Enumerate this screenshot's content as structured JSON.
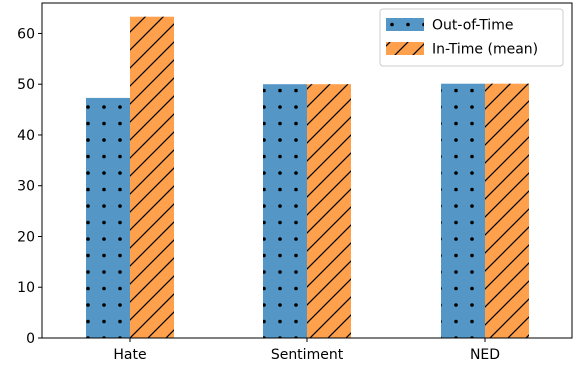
{
  "chart_data": {
    "type": "bar",
    "categories": [
      "Hate",
      "Sentiment",
      "NED"
    ],
    "series": [
      {
        "name": "Out-of-Time",
        "values": [
          47.3,
          50.0,
          50.1
        ],
        "color": "#5496c6",
        "pattern": "dots"
      },
      {
        "name": "In-Time (mean)",
        "values": [
          63.3,
          50.0,
          50.1
        ],
        "color": "#fea04c",
        "pattern": "diagonal-hatch"
      }
    ],
    "ylim": [
      0,
      66
    ],
    "yticks": [
      0,
      10,
      20,
      30,
      40,
      50,
      60
    ],
    "xlabel": "",
    "ylabel": "",
    "title": "",
    "legend": "top-right",
    "grid": false
  }
}
